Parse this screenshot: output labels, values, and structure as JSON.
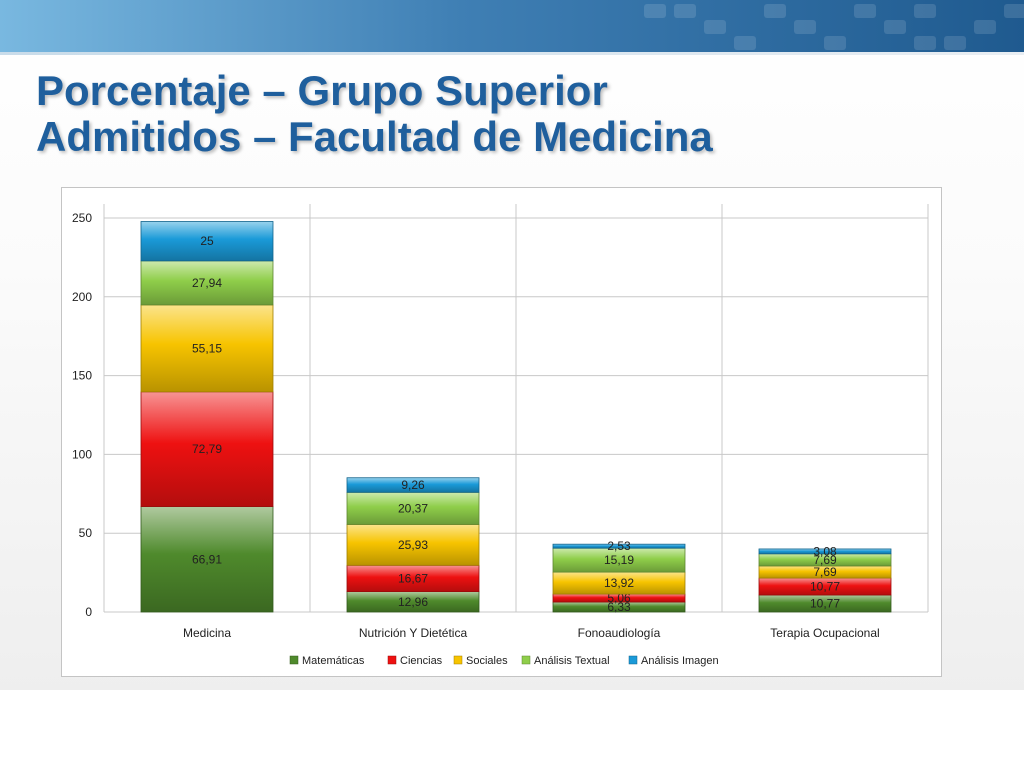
{
  "slide": {
    "title_line1": "Porcentaje – Grupo Superior",
    "title_line2": "Admitidos – Facultad de Medicina"
  },
  "chart_data": {
    "type": "bar",
    "stacked": true,
    "title": "",
    "xlabel": "",
    "ylabel": "",
    "ylim": [
      0,
      250
    ],
    "yticks": [
      0,
      50,
      100,
      150,
      200,
      250
    ],
    "grid": true,
    "legend_position": "bottom",
    "categories": [
      "Medicina",
      "Nutrición Y Dietética",
      "Fonoaudiología",
      "Terapia Ocupacional"
    ],
    "series": [
      {
        "name": "Matemáticas",
        "color": "#4f8a2c",
        "values": [
          66.91,
          12.96,
          6.33,
          10.77
        ],
        "labels": [
          "66,91",
          "12,96",
          "6,33",
          "10,77"
        ]
      },
      {
        "name": "Ciencias",
        "color": "#ee1111",
        "values": [
          72.79,
          16.67,
          5.06,
          10.77
        ],
        "labels": [
          "72,79",
          "16,67",
          "5,06",
          "10,77"
        ]
      },
      {
        "name": "Sociales",
        "color": "#f7c400",
        "values": [
          55.15,
          25.93,
          13.92,
          7.69
        ],
        "labels": [
          "55,15",
          "25,93",
          "13,92",
          "7,69"
        ]
      },
      {
        "name": "Análisis Textual",
        "color": "#8fce4a",
        "values": [
          27.94,
          20.37,
          15.19,
          7.69
        ],
        "labels": [
          "27,94",
          "20,37",
          "15,19",
          "7,69"
        ]
      },
      {
        "name": "Análisis Imagen",
        "color": "#1a9ad8",
        "values": [
          25,
          9.26,
          2.53,
          3.08
        ],
        "labels": [
          "25",
          "9,26",
          "2,53",
          "3,08"
        ]
      }
    ]
  }
}
